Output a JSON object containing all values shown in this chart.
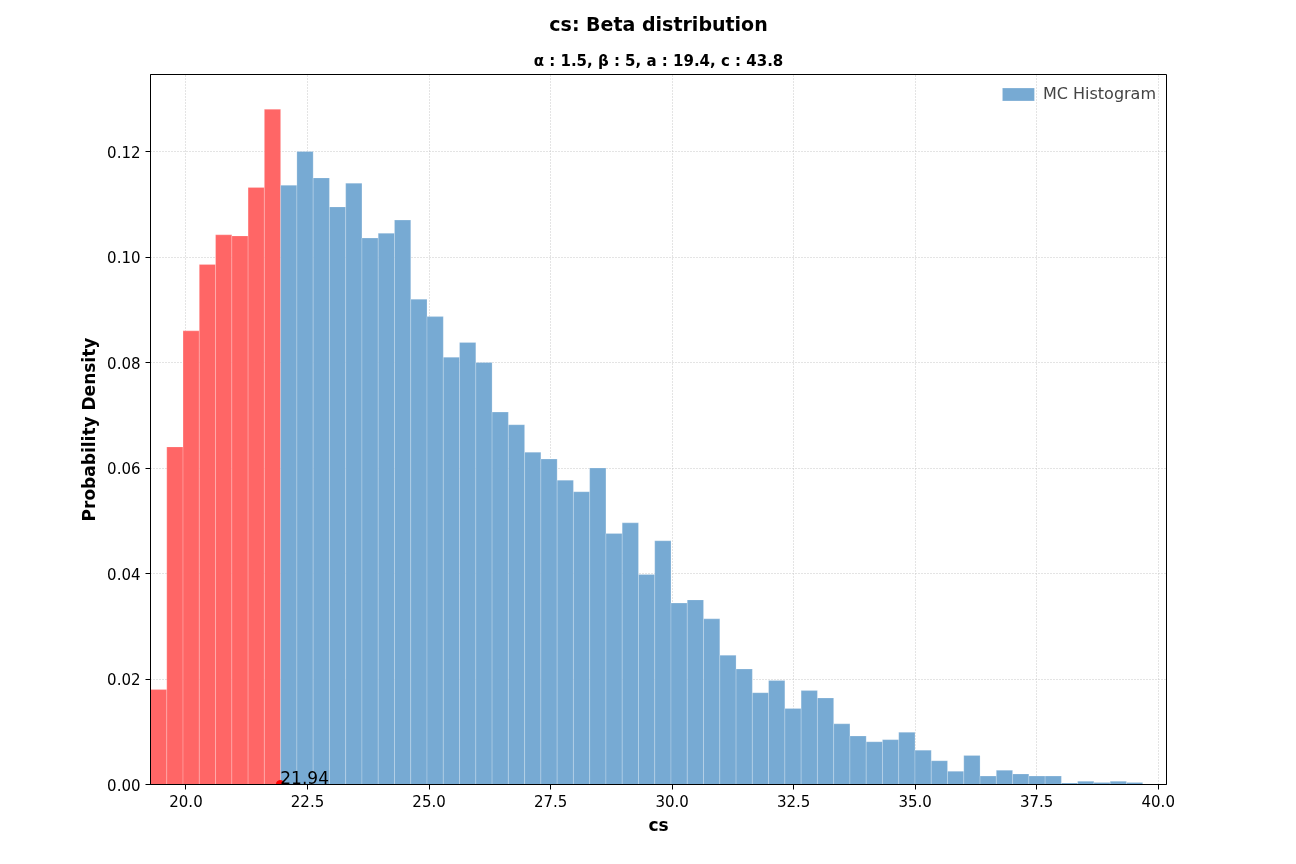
{
  "chart_data": {
    "type": "histogram",
    "title": "cs: Beta distribution",
    "subtitle": "α : 1.5, β : 5, a : 19.4, c : 43.8",
    "xlabel": "cs",
    "ylabel": "Probability Density",
    "bins": [
      19.27,
      19.6046,
      19.9392,
      20.2738,
      20.6084,
      20.943,
      21.2776,
      21.6122,
      21.9468,
      22.2814,
      22.616,
      22.9506,
      23.2852,
      23.6198,
      23.9544,
      24.289,
      24.6236,
      24.9582,
      25.2928,
      25.6274,
      25.962,
      26.2966,
      26.6312,
      26.9658,
      27.3004,
      27.635,
      27.9696,
      28.3042,
      28.6388,
      28.9734,
      29.308,
      29.6426,
      29.9772,
      30.3118,
      30.6464,
      30.981,
      31.3156,
      31.6502,
      31.9848,
      32.3194,
      32.654,
      32.9886,
      33.3232,
      33.6578,
      33.9924,
      34.327,
      34.6616,
      34.9962,
      35.3308,
      35.6654,
      36.0,
      36.3346,
      36.6692,
      37.0038,
      37.3384,
      37.673,
      38.0076,
      38.3422,
      38.6768,
      39.0114,
      39.346,
      39.6806
    ],
    "series": [
      {
        "color": "#ff6666",
        "values": [
          0.018,
          0.064,
          0.086,
          0.0986,
          0.1042,
          0.104,
          0.1132,
          0.128,
          null,
          null,
          null,
          null,
          null,
          null,
          null,
          null,
          null,
          null,
          null,
          null,
          null,
          null,
          null,
          null,
          null,
          null,
          null,
          null,
          null,
          null,
          null,
          null,
          null,
          null,
          null,
          null,
          null,
          null,
          null,
          null,
          null,
          null,
          null,
          null,
          null,
          null,
          null,
          null,
          null,
          null,
          null,
          null,
          null,
          null,
          null,
          null,
          null,
          null,
          null,
          null,
          null
        ]
      },
      {
        "name": "MC Histogram",
        "color": "#77aad3",
        "values": [
          null,
          null,
          null,
          null,
          null,
          null,
          null,
          null,
          0.1136,
          0.12,
          0.115,
          0.1095,
          0.114,
          0.1036,
          0.1045,
          0.107,
          0.092,
          0.0887,
          0.081,
          0.0838,
          0.08,
          0.0706,
          0.0682,
          0.063,
          0.0617,
          0.0577,
          0.0555,
          0.06,
          0.0476,
          0.0496,
          0.0398,
          0.0462,
          0.0344,
          0.035,
          0.0314,
          0.0245,
          0.0219,
          0.0174,
          0.0197,
          0.0144,
          0.0178,
          0.0164,
          0.0115,
          0.0092,
          0.0081,
          0.0085,
          0.0099,
          0.0065,
          0.0045,
          0.0025,
          0.0055,
          0.0016,
          0.0027,
          0.002,
          0.0016,
          0.0016,
          0.0003,
          0.0006,
          0.0004,
          0.0006,
          0.0004
        ]
      }
    ],
    "annotations": [
      {
        "text": "21.94",
        "x": 21.94,
        "y": 0
      }
    ],
    "xlim": [
      19.27,
      40.17
    ],
    "ylim": [
      0,
      0.1346
    ],
    "xticks": [
      {
        "value": 20,
        "label": "20.0"
      },
      {
        "value": 22.5,
        "label": "22.5"
      },
      {
        "value": 25,
        "label": "25.0"
      },
      {
        "value": 27.5,
        "label": "27.5"
      },
      {
        "value": 30,
        "label": "30.0"
      },
      {
        "value": 32.5,
        "label": "32.5"
      },
      {
        "value": 35,
        "label": "35.0"
      },
      {
        "value": 37.5,
        "label": "37.5"
      },
      {
        "value": 40,
        "label": "40.0"
      }
    ],
    "yticks": [
      {
        "value": 0,
        "label": "0.00"
      },
      {
        "value": 0.02,
        "label": "0.02"
      },
      {
        "value": 0.04,
        "label": "0.04"
      },
      {
        "value": 0.06,
        "label": "0.06"
      },
      {
        "value": 0.08,
        "label": "0.08"
      },
      {
        "value": 0.1,
        "label": "0.10"
      },
      {
        "value": 0.12,
        "label": "0.12"
      }
    ],
    "grid": true,
    "legend": "top right"
  }
}
